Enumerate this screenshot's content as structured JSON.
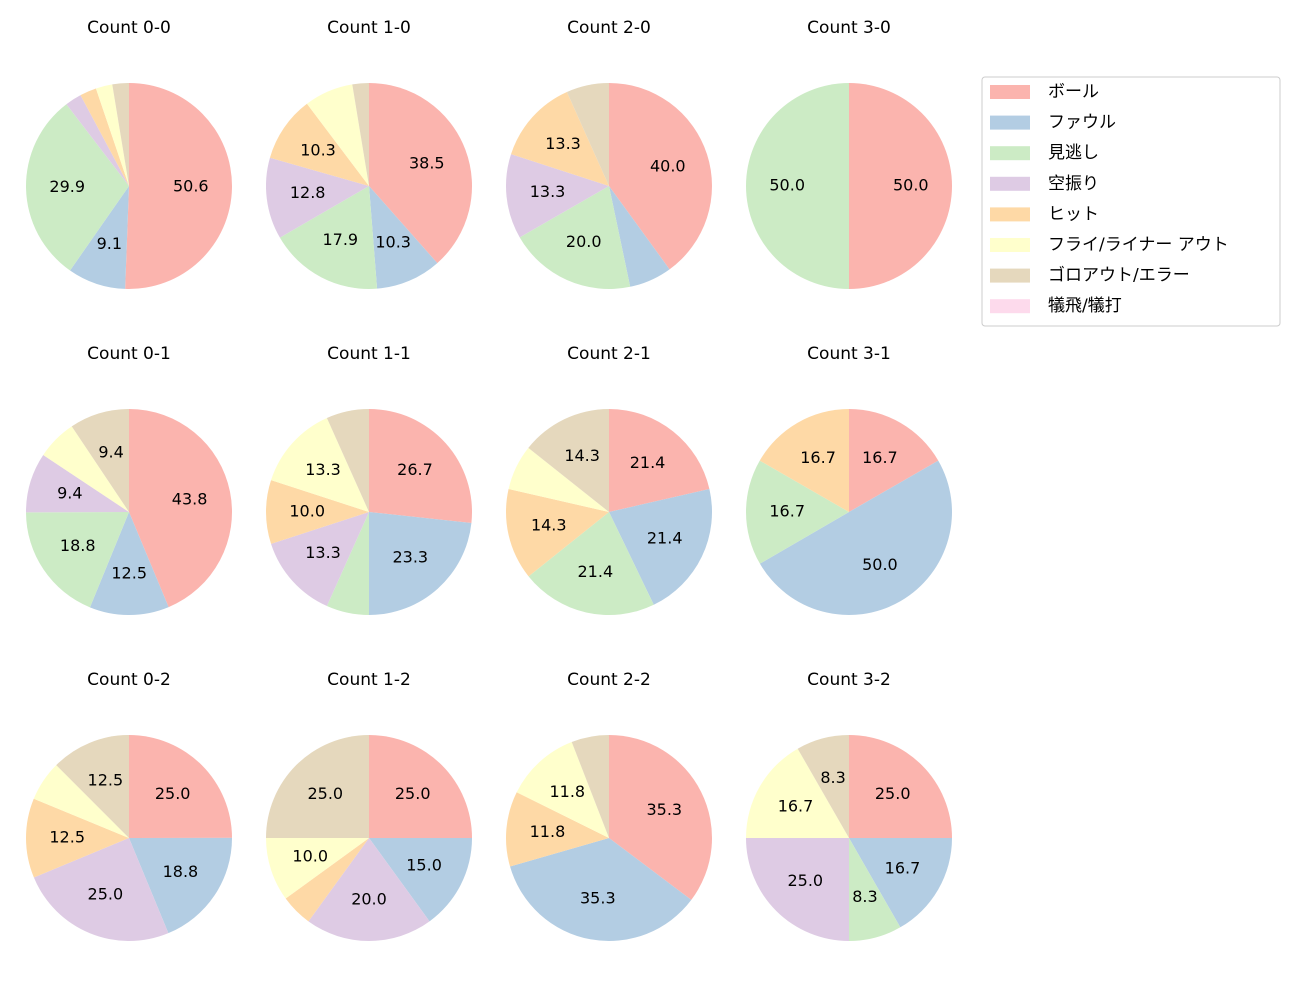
{
  "chart_data": [
    {
      "type": "pie",
      "title": "Count 0-0",
      "categories": [
        "ボール",
        "ファウル",
        "見逃し",
        "空振り",
        "ヒット",
        "フライ/ライナー アウト",
        "ゴロアウト/エラー",
        "犠飛/犠打"
      ],
      "colors": [
        "#fbb4ae",
        "#b3cde3",
        "#ccebc5",
        "#decbe4",
        "#fed9a6",
        "#ffffcc",
        "#e5d8bd",
        "#fddaec"
      ],
      "values": [
        50.6,
        9.1,
        29.9,
        2.6,
        2.6,
        2.6,
        2.6,
        0
      ],
      "value_labels": [
        "50.6",
        "9.1",
        "29.9",
        null,
        null,
        null,
        null,
        null
      ]
    },
    {
      "type": "pie",
      "title": "Count 1-0",
      "categories": [
        "ボール",
        "ファウル",
        "見逃し",
        "空振り",
        "ヒット",
        "フライ/ライナー アウト",
        "ゴロアウト/エラー",
        "犠飛/犠打"
      ],
      "colors": [
        "#fbb4ae",
        "#b3cde3",
        "#ccebc5",
        "#decbe4",
        "#fed9a6",
        "#ffffcc",
        "#e5d8bd",
        "#fddaec"
      ],
      "values": [
        38.5,
        10.3,
        17.9,
        12.8,
        10.3,
        7.7,
        2.6,
        0
      ],
      "value_labels": [
        "38.5",
        "10.3",
        "17.9",
        "12.8",
        "10.3",
        null,
        null,
        null
      ]
    },
    {
      "type": "pie",
      "title": "Count 2-0",
      "categories": [
        "ボール",
        "ファウル",
        "見逃し",
        "空振り",
        "ヒット",
        "フライ/ライナー アウト",
        "ゴロアウト/エラー",
        "犠飛/犠打"
      ],
      "colors": [
        "#fbb4ae",
        "#b3cde3",
        "#ccebc5",
        "#decbe4",
        "#fed9a6",
        "#ffffcc",
        "#e5d8bd",
        "#fddaec"
      ],
      "values": [
        40.0,
        6.7,
        20.0,
        13.3,
        13.3,
        0,
        6.7,
        0
      ],
      "value_labels": [
        "40.0",
        null,
        "20.0",
        "13.3",
        "13.3",
        null,
        null,
        null
      ]
    },
    {
      "type": "pie",
      "title": "Count 3-0",
      "categories": [
        "ボール",
        "ファウル",
        "見逃し",
        "空振り",
        "ヒット",
        "フライ/ライナー アウト",
        "ゴロアウト/エラー",
        "犠飛/犠打"
      ],
      "colors": [
        "#fbb4ae",
        "#b3cde3",
        "#ccebc5",
        "#decbe4",
        "#fed9a6",
        "#ffffcc",
        "#e5d8bd",
        "#fddaec"
      ],
      "values": [
        50,
        0,
        50,
        0,
        0,
        0,
        0,
        0
      ],
      "value_labels": [
        "50.0",
        null,
        "50.0",
        null,
        null,
        null,
        null,
        null
      ]
    },
    {
      "type": "pie",
      "title": "Count 0-1",
      "categories": [
        "ボール",
        "ファウル",
        "見逃し",
        "空振り",
        "ヒット",
        "フライ/ライナー アウト",
        "ゴロアウト/エラー",
        "犠飛/犠打"
      ],
      "colors": [
        "#fbb4ae",
        "#b3cde3",
        "#ccebc5",
        "#decbe4",
        "#fed9a6",
        "#ffffcc",
        "#e5d8bd",
        "#fddaec"
      ],
      "values": [
        43.8,
        12.5,
        18.8,
        9.4,
        0,
        6.3,
        9.4,
        0
      ],
      "value_labels": [
        "43.8",
        "12.5",
        "18.8",
        "9.4",
        null,
        null,
        "9.4",
        null
      ]
    },
    {
      "type": "pie",
      "title": "Count 1-1",
      "categories": [
        "ボール",
        "ファウル",
        "見逃し",
        "空振り",
        "ヒット",
        "フライ/ライナー アウト",
        "ゴロアウト/エラー",
        "犠飛/犠打"
      ],
      "colors": [
        "#fbb4ae",
        "#b3cde3",
        "#ccebc5",
        "#decbe4",
        "#fed9a6",
        "#ffffcc",
        "#e5d8bd",
        "#fddaec"
      ],
      "values": [
        26.7,
        23.3,
        6.7,
        13.3,
        10.0,
        13.3,
        6.7,
        0
      ],
      "value_labels": [
        "26.7",
        "23.3",
        null,
        "13.3",
        "10.0",
        "13.3",
        null,
        null
      ]
    },
    {
      "type": "pie",
      "title": "Count 2-1",
      "categories": [
        "ボール",
        "ファウル",
        "見逃し",
        "空振り",
        "ヒット",
        "フライ/ライナー アウト",
        "ゴロアウト/エラー",
        "犠飛/犠打"
      ],
      "colors": [
        "#fbb4ae",
        "#b3cde3",
        "#ccebc5",
        "#decbe4",
        "#fed9a6",
        "#ffffcc",
        "#e5d8bd",
        "#fddaec"
      ],
      "values": [
        21.4,
        21.4,
        21.4,
        0,
        14.3,
        7.1,
        14.3,
        0
      ],
      "value_labels": [
        "21.4",
        "21.4",
        "21.4",
        null,
        "14.3",
        null,
        "14.3",
        null
      ]
    },
    {
      "type": "pie",
      "title": "Count 3-1",
      "categories": [
        "ボール",
        "ファウル",
        "見逃し",
        "空振り",
        "ヒット",
        "フライ/ライナー アウト",
        "ゴロアウト/エラー",
        "犠飛/犠打"
      ],
      "colors": [
        "#fbb4ae",
        "#b3cde3",
        "#ccebc5",
        "#decbe4",
        "#fed9a6",
        "#ffffcc",
        "#e5d8bd",
        "#fddaec"
      ],
      "values": [
        16.7,
        50.0,
        16.7,
        0,
        16.7,
        0,
        0,
        0
      ],
      "value_labels": [
        "16.7",
        "50.0",
        "16.7",
        null,
        "16.7",
        null,
        null,
        null
      ]
    },
    {
      "type": "pie",
      "title": "Count 0-2",
      "categories": [
        "ボール",
        "ファウル",
        "見逃し",
        "空振り",
        "ヒット",
        "フライ/ライナー アウト",
        "ゴロアウト/エラー",
        "犠飛/犠打"
      ],
      "colors": [
        "#fbb4ae",
        "#b3cde3",
        "#ccebc5",
        "#decbe4",
        "#fed9a6",
        "#ffffcc",
        "#e5d8bd",
        "#fddaec"
      ],
      "values": [
        25.0,
        18.8,
        0,
        25.0,
        12.5,
        6.3,
        12.5,
        0
      ],
      "value_labels": [
        "25.0",
        "18.8",
        null,
        "25.0",
        "12.5",
        null,
        "12.5",
        null
      ]
    },
    {
      "type": "pie",
      "title": "Count 1-2",
      "categories": [
        "ボール",
        "ファウル",
        "見逃し",
        "空振り",
        "ヒット",
        "フライ/ライナー アウト",
        "ゴロアウト/エラー",
        "犠飛/犠打"
      ],
      "colors": [
        "#fbb4ae",
        "#b3cde3",
        "#ccebc5",
        "#decbe4",
        "#fed9a6",
        "#ffffcc",
        "#e5d8bd",
        "#fddaec"
      ],
      "values": [
        25.0,
        15.0,
        0,
        20.0,
        5.0,
        10.0,
        25.0,
        0
      ],
      "value_labels": [
        "25.0",
        "15.0",
        null,
        "20.0",
        null,
        "10.0",
        "25.0",
        null
      ]
    },
    {
      "type": "pie",
      "title": "Count 2-2",
      "categories": [
        "ボール",
        "ファウル",
        "見逃し",
        "空振り",
        "ヒット",
        "フライ/ライナー アウト",
        "ゴロアウト/エラー",
        "犠飛/犠打"
      ],
      "colors": [
        "#fbb4ae",
        "#b3cde3",
        "#ccebc5",
        "#decbe4",
        "#fed9a6",
        "#ffffcc",
        "#e5d8bd",
        "#fddaec"
      ],
      "values": [
        35.3,
        35.3,
        0,
        0,
        11.8,
        11.8,
        5.9,
        0
      ],
      "value_labels": [
        "35.3",
        "35.3",
        null,
        null,
        "11.8",
        "11.8",
        null,
        null
      ]
    },
    {
      "type": "pie",
      "title": "Count 3-2",
      "categories": [
        "ボール",
        "ファウル",
        "見逃し",
        "空振り",
        "ヒット",
        "フライ/ライナー アウト",
        "ゴロアウト/エラー",
        "犠飛/犠打"
      ],
      "colors": [
        "#fbb4ae",
        "#b3cde3",
        "#ccebc5",
        "#decbe4",
        "#fed9a6",
        "#ffffcc",
        "#e5d8bd",
        "#fddaec"
      ],
      "values": [
        25.0,
        16.7,
        8.3,
        25.0,
        0,
        16.7,
        8.3,
        0
      ],
      "value_labels": [
        "25.0",
        "16.7",
        "8.3",
        "25.0",
        null,
        "16.7",
        "8.3",
        null
      ]
    }
  ]
}
